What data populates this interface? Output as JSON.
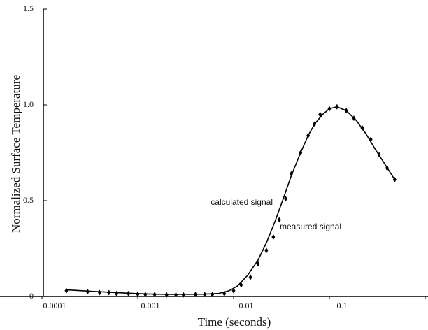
{
  "chart_data": {
    "type": "line",
    "xlabel": "Time (seconds)",
    "ylabel": "Normalized Surface Temperature",
    "xscale": "log",
    "xlim": [
      0.0001,
      1
    ],
    "xticks": [
      0.0001,
      0.001,
      0.01,
      0.1,
      1
    ],
    "ylim": [
      0,
      1.5
    ],
    "yticks": [
      0,
      0.5,
      {
        "value": 1,
        "label": "1.0"
      },
      {
        "value": 1.5,
        "label": "1.5"
      }
    ],
    "series": [
      {
        "name": "calculated signal",
        "color": "#000000",
        "style": "line",
        "x": [
          0.00018,
          0.0003,
          0.0005,
          0.0008,
          0.001,
          0.0015,
          0.002,
          0.003,
          0.005,
          0.007,
          0.009,
          0.011,
          0.014,
          0.018,
          0.022,
          0.027,
          0.033,
          0.04,
          0.05,
          0.06,
          0.07,
          0.085,
          0.1,
          0.12,
          0.15,
          0.19,
          0.24,
          0.3,
          0.38,
          0.48
        ],
        "values": [
          0.035,
          0.028,
          0.022,
          0.017,
          0.015,
          0.012,
          0.011,
          0.011,
          0.012,
          0.016,
          0.03,
          0.055,
          0.11,
          0.19,
          0.28,
          0.39,
          0.51,
          0.63,
          0.75,
          0.84,
          0.9,
          0.95,
          0.98,
          0.99,
          0.97,
          0.92,
          0.85,
          0.77,
          0.69,
          0.61
        ]
      },
      {
        "name": "measured signal",
        "color": "#000000",
        "style": "markers",
        "x": [
          0.00018,
          0.0003,
          0.0004,
          0.0005,
          0.0006,
          0.0008,
          0.001,
          0.0012,
          0.0015,
          0.002,
          0.0025,
          0.003,
          0.004,
          0.005,
          0.006,
          0.008,
          0.01,
          0.012,
          0.015,
          0.018,
          0.022,
          0.026,
          0.03,
          0.035,
          0.04,
          0.05,
          0.06,
          0.07,
          0.08,
          0.1,
          0.12,
          0.15,
          0.18,
          0.22,
          0.27,
          0.33,
          0.4,
          0.48
        ],
        "values": [
          0.03,
          0.025,
          0.02,
          0.02,
          0.015,
          0.015,
          0.012,
          0.01,
          0.01,
          0.008,
          0.008,
          0.008,
          0.01,
          0.01,
          0.01,
          0.015,
          0.03,
          0.06,
          0.1,
          0.17,
          0.24,
          0.31,
          0.4,
          0.51,
          0.64,
          0.75,
          0.84,
          0.9,
          0.95,
          0.98,
          0.99,
          0.97,
          0.93,
          0.88,
          0.82,
          0.74,
          0.67,
          0.61
        ]
      }
    ]
  }
}
